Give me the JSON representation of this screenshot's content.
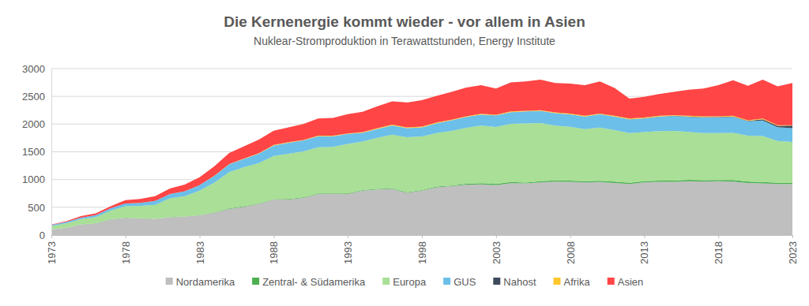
{
  "chart_data": {
    "type": "area",
    "stacked": true,
    "title": "Die Kernenergie kommt wieder - vor allem in Asien",
    "subtitle": "Nuklear-Stromproduktion in Terawattstunden, Energy Institute",
    "x": [
      1973,
      1974,
      1975,
      1976,
      1977,
      1978,
      1979,
      1980,
      1981,
      1982,
      1983,
      1984,
      1985,
      1986,
      1987,
      1988,
      1989,
      1990,
      1991,
      1992,
      1993,
      1994,
      1995,
      1996,
      1997,
      1998,
      1999,
      2000,
      2001,
      2002,
      2003,
      2004,
      2005,
      2006,
      2007,
      2008,
      2009,
      2010,
      2011,
      2012,
      2013,
      2014,
      2015,
      2016,
      2017,
      2018,
      2019,
      2020,
      2021,
      2022,
      2023
    ],
    "xlim": [
      1973,
      2023
    ],
    "xticks": [
      1973,
      1978,
      1983,
      1988,
      1993,
      1998,
      2003,
      2008,
      2013,
      2018,
      2023
    ],
    "ylim": [
      0,
      3000
    ],
    "yticks": [
      0,
      500,
      1000,
      1500,
      2000,
      2500,
      3000
    ],
    "grid": true,
    "legend": "bottom",
    "series": [
      {
        "name": "Nordamerika",
        "color": "#bfbfbf",
        "values": [
          100,
          130,
          190,
          210,
          280,
          310,
          300,
          290,
          320,
          330,
          355,
          400,
          470,
          510,
          560,
          640,
          640,
          670,
          740,
          745,
          740,
          800,
          820,
          830,
          760,
          800,
          860,
          880,
          905,
          915,
          900,
          935,
          930,
          950,
          965,
          960,
          950,
          955,
          940,
          920,
          950,
          960,
          960,
          970,
          965,
          970,
          965,
          940,
          930,
          920,
          920
        ]
      },
      {
        "name": "Zentral- & Südamerika",
        "color": "#4caf50",
        "values": [
          0,
          0,
          2,
          3,
          3,
          3,
          3,
          3,
          3,
          4,
          4,
          8,
          10,
          10,
          8,
          8,
          10,
          10,
          10,
          10,
          10,
          10,
          10,
          11,
          11,
          12,
          15,
          12,
          20,
          20,
          20,
          20,
          17,
          21,
          20,
          21,
          20,
          22,
          22,
          22,
          22,
          22,
          22,
          24,
          23,
          22,
          25,
          22,
          25,
          22,
          22
        ]
      },
      {
        "name": "Europa",
        "color": "#a9df96",
        "values": [
          60,
          80,
          91,
          110,
          157,
          207,
          222,
          252,
          337,
          366,
          441,
          538,
          655,
          701,
          730,
          776,
          814,
          827,
          831,
          835,
          893,
          876,
          924,
          967,
          991,
          964,
          962,
          985,
          1009,
          1038,
          1027,
          1051,
          1066,
          1049,
          988,
          971,
          937,
          961,
          929,
          895,
          885,
          890,
          894,
          865,
          850,
          845,
          850,
          828,
          829,
          752,
          734
        ]
      },
      {
        "name": "GUS",
        "color": "#6cbfe8",
        "values": [
          20,
          25,
          30,
          35,
          45,
          50,
          55,
          70,
          80,
          90,
          100,
          120,
          140,
          150,
          170,
          190,
          200,
          200,
          200,
          190,
          180,
          160,
          160,
          170,
          165,
          165,
          180,
          190,
          195,
          200,
          210,
          210,
          215,
          220,
          225,
          225,
          230,
          240,
          245,
          250,
          245,
          260,
          270,
          270,
          280,
          285,
          290,
          260,
          280,
          250,
          250
        ]
      },
      {
        "name": "Nahost",
        "color": "#3d4a5c",
        "values": [
          0,
          0,
          0,
          0,
          0,
          0,
          0,
          0,
          0,
          0,
          0,
          0,
          0,
          0,
          0,
          0,
          0,
          0,
          0,
          0,
          0,
          0,
          0,
          0,
          0,
          0,
          0,
          0,
          0,
          0,
          0,
          0,
          0,
          0,
          0,
          0,
          0,
          0,
          1,
          1,
          4,
          4,
          3,
          6,
          7,
          7,
          6,
          8,
          24,
          26,
          46
        ]
      },
      {
        "name": "Afrika",
        "color": "#ffc72c",
        "values": [
          0,
          0,
          0,
          0,
          0,
          0,
          0,
          0,
          0,
          0,
          0,
          4,
          5,
          9,
          7,
          11,
          11,
          8,
          9,
          10,
          7,
          9,
          11,
          12,
          13,
          14,
          13,
          13,
          11,
          12,
          13,
          14,
          12,
          10,
          12,
          13,
          13,
          12,
          13,
          12,
          14,
          14,
          11,
          15,
          15,
          11,
          14,
          12,
          12,
          10,
          8
        ]
      },
      {
        "name": "Asien",
        "color": "#ff4545",
        "values": [
          10,
          15,
          27,
          32,
          35,
          60,
          70,
          85,
          100,
          120,
          140,
          170,
          200,
          220,
          245,
          255,
          265,
          285,
          310,
          320,
          350,
          365,
          395,
          420,
          450,
          475,
          480,
          500,
          520,
          515,
          470,
          520,
          530,
          550,
          530,
          540,
          550,
          580,
          500,
          360,
          370,
          390,
          420,
          470,
          500,
          560,
          640,
          620,
          700,
          700,
          760
        ]
      }
    ]
  }
}
